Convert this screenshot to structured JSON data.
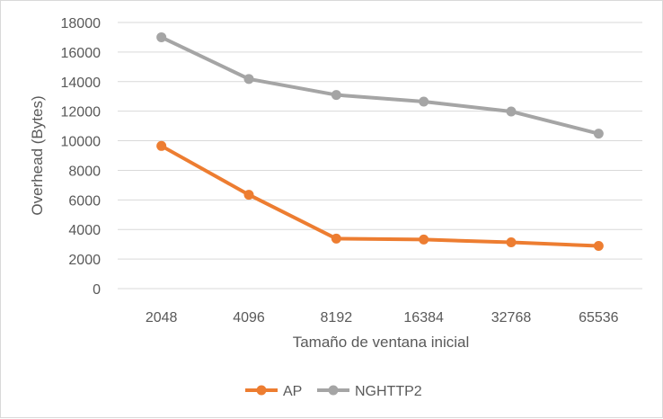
{
  "chart_data": {
    "type": "line",
    "title": "",
    "xlabel": "Tamaño de ventana inicial",
    "ylabel": "Overhead (Bytes)",
    "categories": [
      "2048",
      "4096",
      "8192",
      "16384",
      "32768",
      "65536"
    ],
    "ylim": [
      0,
      18000
    ],
    "yticks": [
      "0",
      "2000",
      "4000",
      "6000",
      "8000",
      "10000",
      "12000",
      "14000",
      "16000",
      "18000"
    ],
    "grid": true,
    "legend_position": "bottom",
    "series": [
      {
        "name": "AP",
        "color": "#ed7d31",
        "values": [
          9650,
          6350,
          3380,
          3320,
          3130,
          2890
        ]
      },
      {
        "name": "NGHTTP2",
        "color": "#a5a5a5",
        "values": [
          17000,
          14180,
          13100,
          12650,
          11980,
          10480
        ]
      }
    ]
  }
}
